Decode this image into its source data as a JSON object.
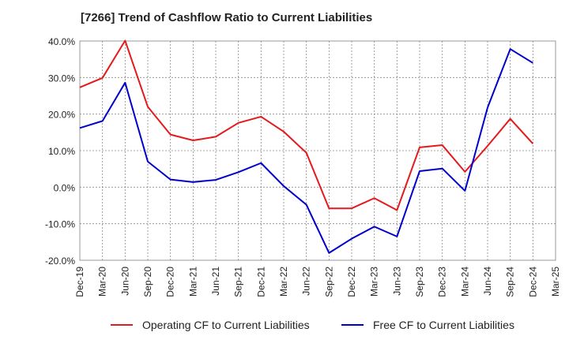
{
  "chart_data": {
    "type": "line",
    "title": "[7266]  Trend of Cashflow Ratio to Current Liabilities",
    "xlabel": "",
    "ylabel": "",
    "ylim": [
      -20,
      40
    ],
    "yticks": [
      "-20.0%",
      "-10.0%",
      "0.0%",
      "10.0%",
      "20.0%",
      "30.0%",
      "40.0%"
    ],
    "ytick_values": [
      -20,
      -10,
      0,
      10,
      20,
      30,
      40
    ],
    "categories": [
      "Dec-19",
      "Mar-20",
      "Jun-20",
      "Sep-20",
      "Dec-20",
      "Mar-21",
      "Jun-21",
      "Sep-21",
      "Dec-21",
      "Mar-22",
      "Jun-22",
      "Sep-22",
      "Dec-22",
      "Mar-23",
      "Jun-23",
      "Sep-23",
      "Dec-23",
      "Mar-24",
      "Jun-24",
      "Sep-24",
      "Dec-24",
      "Mar-25"
    ],
    "grid": true,
    "legend_position": "bottom",
    "series": [
      {
        "name": "Operating CF to Current Liabilities",
        "color": "#e41a1c",
        "values": [
          27.3,
          29.9,
          40.1,
          22.0,
          14.4,
          12.8,
          13.8,
          17.6,
          19.3,
          15.2,
          9.4,
          -5.8,
          -5.8,
          -3.0,
          -6.3,
          10.9,
          11.5,
          4.2,
          11.3,
          18.7,
          11.9,
          null
        ]
      },
      {
        "name": "Free CF to Current Liabilities",
        "color": "#0000cc",
        "values": [
          16.2,
          18.1,
          28.6,
          7.0,
          2.1,
          1.4,
          2.0,
          4.1,
          6.6,
          0.3,
          -4.8,
          -18.0,
          -14.1,
          -10.8,
          -13.5,
          4.4,
          5.1,
          -1.0,
          21.8,
          37.8,
          34.0,
          null
        ]
      }
    ]
  }
}
